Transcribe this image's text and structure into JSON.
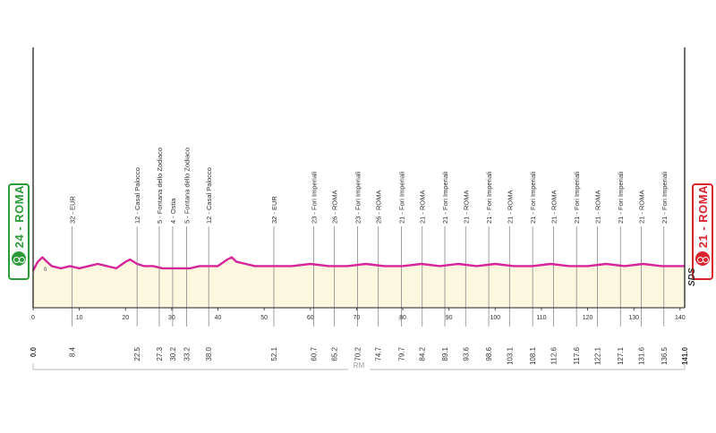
{
  "chart_data": {
    "type": "area",
    "xlabel": "",
    "ylabel": "",
    "xlim": [
      0,
      141
    ],
    "x_ticks": [
      0,
      10,
      20,
      30,
      40,
      50,
      60,
      70,
      80,
      90,
      100,
      110,
      120,
      130,
      140
    ],
    "start": {
      "label": "24 - ROMA",
      "km": "0.0"
    },
    "finish": {
      "label": "21 - ROMA",
      "km": "141.0"
    },
    "footer": "SDS",
    "region": "RM",
    "profile": {
      "x": [
        0,
        1,
        2,
        3,
        4,
        6,
        8,
        10,
        12,
        14,
        16,
        18,
        20,
        21,
        22.5,
        24,
        26,
        28,
        30,
        32,
        34,
        36,
        38,
        40,
        42,
        43,
        44,
        46,
        48,
        50,
        52,
        56,
        60,
        64,
        68,
        72,
        76,
        80,
        84,
        88,
        92,
        96,
        100,
        104,
        108,
        112,
        116,
        120,
        124,
        128,
        132,
        136,
        140,
        141
      ],
      "y": [
        17,
        21,
        23,
        21,
        19,
        18,
        19,
        18,
        19,
        20,
        19,
        18,
        21,
        22,
        20,
        19,
        19,
        18,
        18,
        18,
        18,
        19,
        19,
        19,
        22,
        23,
        21,
        20,
        19,
        19,
        19,
        19,
        20,
        19,
        19,
        20,
        19,
        19,
        20,
        19,
        20,
        19,
        20,
        19,
        19,
        20,
        19,
        19,
        20,
        19,
        20,
        19,
        19,
        19
      ]
    },
    "points": [
      {
        "km": "8.4",
        "x": 8.4,
        "label": "32 - EUR"
      },
      {
        "km": "22.5",
        "x": 22.5,
        "label": "12 - Casal Palocco"
      },
      {
        "km": "27.3",
        "x": 27.3,
        "label": "5 - Fontana dello Zodiaco"
      },
      {
        "km": "30.2",
        "x": 30.2,
        "label": "4 - Ostia"
      },
      {
        "km": "33.2",
        "x": 33.2,
        "label": "5 - Fontana dello Zodiaco"
      },
      {
        "km": "38.0",
        "x": 38.0,
        "label": "12 - Casal Palocco"
      },
      {
        "km": "52.1",
        "x": 52.1,
        "label": "32 - EUR"
      },
      {
        "km": "60.7",
        "x": 60.7,
        "label": "23 - Fori Imperiali"
      },
      {
        "km": "65.2",
        "x": 65.2,
        "label": "26 - ROMA"
      },
      {
        "km": "70.2",
        "x": 70.2,
        "label": "23 - Fori Imperiali"
      },
      {
        "km": "74.7",
        "x": 74.7,
        "label": "26 - ROMA"
      },
      {
        "km": "79.7",
        "x": 79.7,
        "label": "21 - Fori Imperiali"
      },
      {
        "km": "84.2",
        "x": 84.2,
        "label": "21 - ROMA"
      },
      {
        "km": "89.1",
        "x": 89.1,
        "label": "21 - Fori Imperiali"
      },
      {
        "km": "93.6",
        "x": 93.6,
        "label": "21 - ROMA"
      },
      {
        "km": "98.6",
        "x": 98.6,
        "label": "21 - Fori Imperiali"
      },
      {
        "km": "103.1",
        "x": 103.1,
        "label": "21 - ROMA"
      },
      {
        "km": "108.1",
        "x": 108.1,
        "label": "21 - Fori Imperiali"
      },
      {
        "km": "112.6",
        "x": 112.6,
        "label": "21 - ROMA"
      },
      {
        "km": "117.6",
        "x": 117.6,
        "label": "21 - Fori Imperiali"
      },
      {
        "km": "122.1",
        "x": 122.1,
        "label": "21 - ROMA"
      },
      {
        "km": "127.1",
        "x": 127.1,
        "label": "21 - Fori Imperiali"
      },
      {
        "km": "131.6",
        "x": 131.6,
        "label": "21 - ROMA"
      },
      {
        "km": "136.5",
        "x": 136.5,
        "label": "21 - Fori Imperiali"
      }
    ],
    "colors": {
      "profile_line": "#d6259a",
      "profile_fill": "#fbf8df",
      "axis": "#222222",
      "guide": "#888888",
      "start": "#2e9b3a",
      "finish": "#d9232d",
      "text": "#333333"
    }
  }
}
